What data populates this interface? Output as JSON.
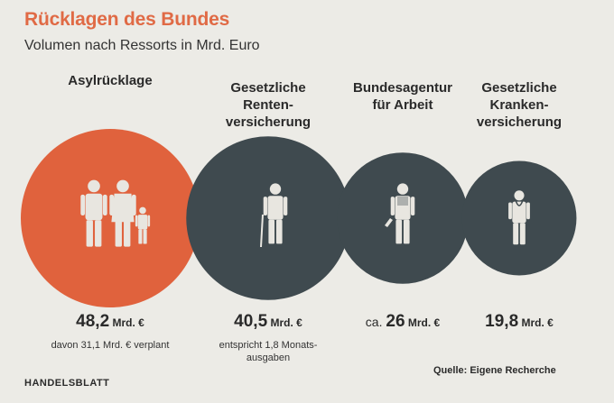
{
  "title": "Rücklagen des Bundes",
  "subtitle": "Volumen nach Ressorts in Mrd. Euro",
  "chart_data": {
    "type": "bubble",
    "unit": "Mrd. €",
    "categories": [
      "Asylrücklage",
      "Gesetzliche Renten-versicherung",
      "Bundesagentur für Arbeit",
      "Gesetzliche Kranken-versicherung"
    ],
    "values": [
      48.2,
      40.5,
      26,
      19.8
    ],
    "items": [
      {
        "label_lines": [
          "Asylrücklage"
        ],
        "prefix": "",
        "value_text": "48,2",
        "unit": "Mrd. €",
        "note_lines": [
          "davon 31,1 Mrd. € verplant"
        ],
        "color": "#e0623d",
        "icon": "family-icon"
      },
      {
        "label_lines": [
          "Gesetzliche",
          "Renten-",
          "versicherung"
        ],
        "prefix": "",
        "value_text": "40,5",
        "unit": "Mrd. €",
        "note_lines": [
          "entspricht 1,8 Monats-",
          "ausgaben"
        ],
        "color": "#3f4a4f",
        "icon": "elderly-person-icon"
      },
      {
        "label_lines": [
          "Bundesagentur",
          "für Arbeit"
        ],
        "prefix": "ca.",
        "value_text": "26",
        "unit": "Mrd. €",
        "note_lines": [],
        "color": "#3f4a4f",
        "icon": "worker-icon"
      },
      {
        "label_lines": [
          "Gesetzliche",
          "Kranken-",
          "versicherung"
        ],
        "prefix": "",
        "value_text": "19,8",
        "unit": "Mrd. €",
        "note_lines": [],
        "color": "#3f4a4f",
        "icon": "doctor-icon"
      }
    ]
  },
  "footer": {
    "publisher": "HANDELSBLATT",
    "source": "Quelle: Eigene Recherche"
  },
  "colors": {
    "accent": "#e0623d",
    "circle_dark": "#3f4a4f",
    "figure_light": "#e8e6e0",
    "background": "#ecebe6"
  }
}
